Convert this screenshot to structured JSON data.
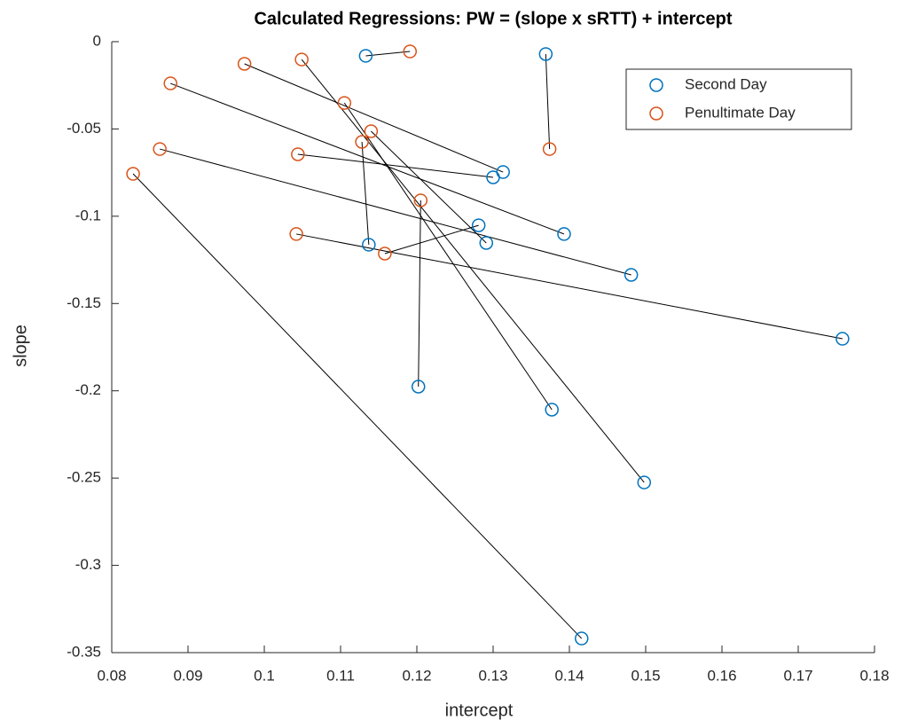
{
  "chart_data": {
    "type": "scatter",
    "title": "Calculated Regressions: PW = (slope x sRTT) + intercept",
    "x_label": "intercept",
    "y_label": "slope",
    "xlim": [
      0.08,
      0.18
    ],
    "ylim": [
      -0.35,
      0
    ],
    "xticks": [
      0.08,
      0.09,
      0.1,
      0.11,
      0.12,
      0.13,
      0.14,
      0.15,
      0.16,
      0.17,
      0.18
    ],
    "yticks": [
      -0.35,
      -0.3,
      -0.25,
      -0.2,
      -0.15,
      -0.1,
      -0.05,
      0
    ],
    "legend": "top-right",
    "grid": false,
    "series": [
      {
        "name": "Second Day",
        "color": "#0072BD",
        "x": [
          0.1133,
          0.1369,
          0.13,
          0.1313,
          0.1393,
          0.1281,
          0.1291,
          0.1137,
          0.1481,
          0.1758,
          0.1202,
          0.1377,
          0.1498,
          0.1416
        ],
        "values": [
          -0.0081,
          -0.0071,
          -0.0777,
          -0.0747,
          -0.1102,
          -0.1052,
          -0.1153,
          -0.1163,
          -0.1336,
          -0.1702,
          -0.1976,
          -0.2108,
          -0.2525,
          -0.3419
        ]
      },
      {
        "name": "Penultimate Day",
        "color": "#D95319",
        "x": [
          0.1191,
          0.1374,
          0.1044,
          0.0974,
          0.0877,
          0.1158,
          0.114,
          0.1128,
          0.0863,
          0.1042,
          0.1205,
          0.1105,
          0.1049,
          0.0828
        ],
        "values": [
          -0.0056,
          -0.0615,
          -0.0645,
          -0.0127,
          -0.0239,
          -0.1214,
          -0.0513,
          -0.0574,
          -0.0615,
          -0.1102,
          -0.0909,
          -0.0351,
          -0.0102,
          -0.0757
        ]
      }
    ]
  }
}
